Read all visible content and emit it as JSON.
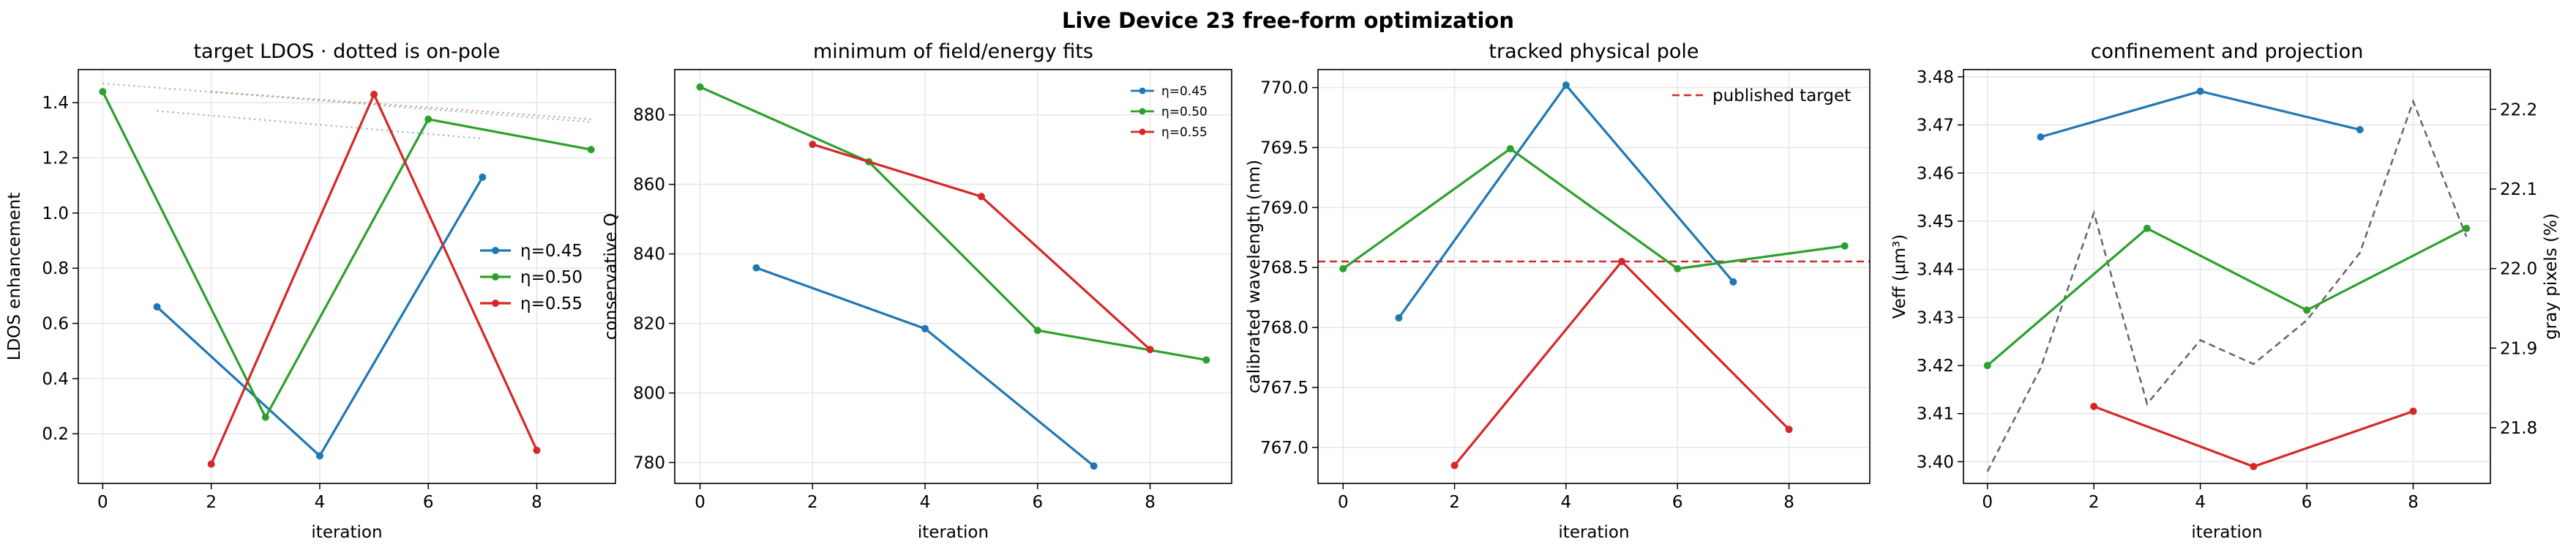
{
  "suptitle": "Live Device 23 free-form optimization",
  "colors": {
    "eta045": "#1f77b4",
    "eta050": "#2ca02c",
    "eta055": "#d62728",
    "gray": "#666666",
    "grid": "#e6e6e6"
  },
  "chart_data": [
    {
      "type": "line",
      "title": "target LDOS · dotted is on-pole",
      "xlabel": "iteration",
      "ylabel": "LDOS enhancement",
      "xlim": [
        -0.45,
        9.45
      ],
      "ylim": [
        0.02,
        1.52
      ],
      "xticks": [
        0,
        2,
        4,
        6,
        8
      ],
      "yticks": [
        0.2,
        0.4,
        0.6,
        0.8,
        1.0,
        1.2,
        1.4
      ],
      "ytick_labels": [
        "0.2",
        "0.4",
        "0.6",
        "0.8",
        "1.0",
        "1.2",
        "1.4"
      ],
      "grid": true,
      "legend": "center-right",
      "series": [
        {
          "name": "η=0.45",
          "color": "#1f77b4",
          "x": [
            1,
            4,
            7
          ],
          "y": [
            0.66,
            0.12,
            1.13
          ]
        },
        {
          "name": "η=0.50",
          "color": "#2ca02c",
          "x": [
            0,
            3,
            6,
            9
          ],
          "y": [
            1.44,
            0.26,
            1.34,
            1.23
          ]
        },
        {
          "name": "η=0.55",
          "color": "#d62728",
          "x": [
            2,
            5,
            8
          ],
          "y": [
            0.09,
            1.43,
            0.14
          ]
        }
      ],
      "dotted_series": [
        {
          "color": "#1f77b4",
          "x": [
            1,
            7
          ],
          "y": [
            1.37,
            1.27
          ]
        },
        {
          "color": "#2ca02c",
          "x": [
            0,
            9
          ],
          "y": [
            1.47,
            1.33
          ]
        },
        {
          "color": "#d62728",
          "x": [
            2,
            9
          ],
          "y": [
            1.44,
            1.34
          ]
        }
      ]
    },
    {
      "type": "line",
      "title": "minimum of field/energy fits",
      "xlabel": "iteration",
      "ylabel": "conservative Q",
      "xlim": [
        -0.45,
        9.45
      ],
      "ylim": [
        774,
        893
      ],
      "xticks": [
        0,
        2,
        4,
        6,
        8
      ],
      "yticks": [
        780,
        800,
        820,
        840,
        860,
        880
      ],
      "ytick_labels": [
        "780",
        "800",
        "820",
        "840",
        "860",
        "880"
      ],
      "grid": true,
      "legend": "top-right",
      "legend_small": true,
      "series": [
        {
          "name": "η=0.45",
          "color": "#1f77b4",
          "x": [
            1,
            4,
            7
          ],
          "y": [
            836,
            818.5,
            779
          ]
        },
        {
          "name": "η=0.50",
          "color": "#2ca02c",
          "x": [
            0,
            3,
            6,
            9
          ],
          "y": [
            888,
            866.5,
            818,
            809.5
          ]
        },
        {
          "name": "η=0.55",
          "color": "#d62728",
          "x": [
            2,
            5,
            8
          ],
          "y": [
            871.5,
            856.5,
            812.5
          ]
        }
      ]
    },
    {
      "type": "line",
      "title": "tracked physical pole",
      "xlabel": "iteration",
      "ylabel": "calibrated wavelength (nm)",
      "xlim": [
        -0.45,
        9.45
      ],
      "ylim": [
        766.7,
        770.15
      ],
      "xticks": [
        0,
        2,
        4,
        6,
        8
      ],
      "yticks": [
        767.0,
        767.5,
        768.0,
        768.5,
        769.0,
        769.5,
        770.0
      ],
      "ytick_labels": [
        "767.0",
        "767.5",
        "768.0",
        "768.5",
        "769.0",
        "769.5",
        "770.0"
      ],
      "grid": true,
      "legend": "top-right",
      "hline": {
        "name": "published target",
        "y": 768.55,
        "color": "#d62728"
      },
      "series": [
        {
          "color": "#1f77b4",
          "x": [
            1,
            4,
            7
          ],
          "y": [
            768.08,
            770.02,
            768.38
          ]
        },
        {
          "color": "#2ca02c",
          "x": [
            0,
            3,
            6,
            9
          ],
          "y": [
            768.49,
            769.49,
            768.49,
            768.68
          ]
        },
        {
          "color": "#d62728",
          "x": [
            2,
            5,
            8
          ],
          "y": [
            766.85,
            768.55,
            767.15
          ]
        }
      ]
    },
    {
      "type": "line",
      "title": "confinement and projection",
      "xlabel": "iteration",
      "ylabel": "Veff (µm³)",
      "y2label": "gray pixels (%)",
      "xlim": [
        -0.45,
        9.45
      ],
      "ylim": [
        3.3955,
        3.4815
      ],
      "y2lim": [
        21.73,
        22.25
      ],
      "xticks": [
        0,
        2,
        4,
        6,
        8
      ],
      "yticks": [
        3.4,
        3.41,
        3.42,
        3.43,
        3.44,
        3.45,
        3.46,
        3.47,
        3.48
      ],
      "ytick_labels": [
        "3.40",
        "3.41",
        "3.42",
        "3.43",
        "3.44",
        "3.45",
        "3.46",
        "3.47",
        "3.48"
      ],
      "y2ticks": [
        21.8,
        21.9,
        22.0,
        22.1,
        22.2
      ],
      "y2tick_labels": [
        "21.8",
        "21.9",
        "22.0",
        "22.1",
        "22.2"
      ],
      "grid": true,
      "series": [
        {
          "color": "#1f77b4",
          "x": [
            1,
            4,
            7
          ],
          "y": [
            3.4675,
            3.477,
            3.469
          ]
        },
        {
          "color": "#2ca02c",
          "x": [
            0,
            3,
            6,
            9
          ],
          "y": [
            3.42,
            3.4485,
            3.4315,
            3.4485
          ]
        },
        {
          "color": "#d62728",
          "x": [
            2,
            5,
            8
          ],
          "y": [
            3.4115,
            3.399,
            3.4105
          ]
        }
      ],
      "secondary_series": [
        {
          "color": "#666666",
          "x": [
            0,
            1,
            2,
            3,
            4,
            5,
            6,
            7,
            8,
            9
          ],
          "y": [
            21.745,
            21.875,
            22.07,
            21.83,
            21.91,
            21.88,
            21.935,
            22.02,
            22.21,
            22.04
          ]
        }
      ]
    }
  ]
}
